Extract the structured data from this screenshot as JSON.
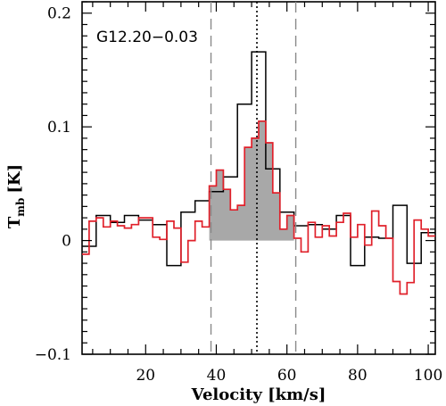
{
  "chart_data": {
    "type": "line",
    "source_name": "G12.20−0.03",
    "xlabel": "Velocity [km/s]",
    "ylabel_main": "T",
    "ylabel_sub": "mb",
    "ylabel_unit": "[K]",
    "xlim": [
      2,
      102
    ],
    "ylim": [
      -0.1,
      0.21
    ],
    "x_ticks": [
      20,
      40,
      60,
      80,
      100
    ],
    "y_ticks": [
      -0.1,
      0,
      0.1,
      0.2
    ],
    "y_tick_labels": [
      "−0.1",
      "0",
      "0.1",
      "0.2"
    ],
    "vlines": {
      "dashed": [
        38.5,
        62.5
      ],
      "dotted": [
        51.5
      ]
    },
    "series": [
      {
        "style": "step",
        "color": "#000000",
        "x": [
          2,
          6,
          10,
          14,
          18,
          22,
          26,
          30,
          34,
          38,
          42,
          46,
          50,
          54,
          58,
          62,
          66,
          70,
          74,
          78,
          82,
          86,
          90,
          94,
          98,
          102
        ],
        "y": [
          -0.005,
          0.022,
          0.016,
          0.022,
          0.018,
          0.014,
          -0.022,
          0.025,
          0.035,
          0.043,
          0.056,
          0.12,
          0.166,
          0.063,
          0.025,
          0.013,
          0.014,
          0.01,
          0.022,
          -0.022,
          0.003,
          0.002,
          0.031,
          -0.02,
          0.007,
          0.007
        ]
      },
      {
        "style": "step",
        "color": "#e0202a",
        "x": [
          2,
          4,
          6,
          8,
          10,
          12,
          14,
          16,
          18,
          20,
          22,
          24,
          26,
          28,
          30,
          32,
          34,
          36,
          38,
          40,
          42,
          44,
          46,
          48,
          50,
          52,
          54,
          56,
          58,
          60,
          62,
          64,
          66,
          68,
          70,
          72,
          74,
          76,
          78,
          80,
          82,
          84,
          86,
          88,
          90,
          92,
          94,
          96,
          98,
          100,
          102
        ],
        "y": [
          -0.012,
          0.017,
          0.02,
          0.012,
          0.017,
          0.013,
          0.011,
          0.014,
          0.02,
          0.02,
          0.003,
          0.001,
          0.017,
          0.011,
          -0.019,
          0.0,
          0.017,
          0.012,
          0.048,
          0.062,
          0.045,
          0.027,
          0.031,
          0.082,
          0.09,
          0.105,
          0.086,
          0.042,
          0.01,
          0.022,
          0.002,
          -0.01,
          0.016,
          0.003,
          0.013,
          0.004,
          0.016,
          0.024,
          0.003,
          0.014,
          -0.004,
          0.026,
          0.013,
          0.002,
          -0.036,
          -0.047,
          -0.037,
          0.018,
          0.01,
          0.004,
          -0.018
        ]
      }
    ],
    "fill": {
      "color": "#a8a8a8",
      "x": [
        38,
        40,
        42,
        44,
        46,
        48,
        50,
        52,
        54,
        56,
        58,
        60,
        62
      ],
      "y": [
        0.048,
        0.062,
        0.045,
        0.027,
        0.031,
        0.082,
        0.09,
        0.105,
        0.086,
        0.042,
        0.01,
        0.022,
        0.022
      ]
    }
  }
}
